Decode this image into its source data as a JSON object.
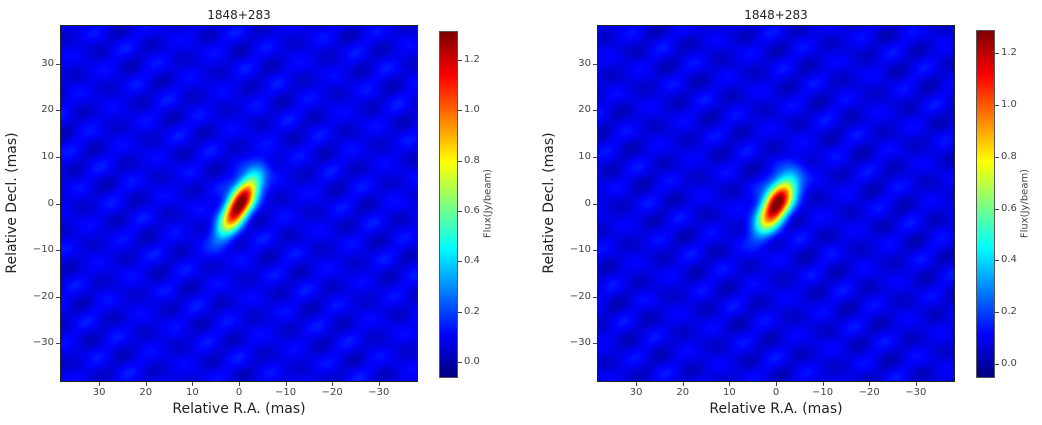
{
  "chart_data": [
    {
      "type": "heatmap",
      "title": "1848+283",
      "xlabel": "Relative R.A. (mas)",
      "ylabel": "Relative Decl. (mas)",
      "xlim": [
        38.4,
        -38.4
      ],
      "ylim": [
        -38.3,
        38.3
      ],
      "xticks": [
        30,
        20,
        10,
        0,
        -10,
        -20,
        -30
      ],
      "xtick_labels": [
        "30",
        "20",
        "10",
        "0",
        "−10",
        "−20",
        "−30"
      ],
      "yticks": [
        30,
        20,
        10,
        0,
        -10,
        -20,
        -30
      ],
      "ytick_labels": [
        "30",
        "20",
        "10",
        "0",
        "−10",
        "−20",
        "−30"
      ],
      "colormap": "jet",
      "colorbar": {
        "label": "Flux(Jy/beam)",
        "clim": [
          -0.064,
          1.315
        ],
        "ticks": [
          0.0,
          0.2,
          0.4,
          0.6,
          0.8,
          1.0,
          1.2
        ],
        "tick_labels": [
          "0.0",
          "0.2",
          "0.4",
          "0.6",
          "0.8",
          "1.0",
          "1.2"
        ]
      },
      "source": {
        "center": [
          0,
          0
        ],
        "peak": 1.31,
        "major_fwhm_mas": 11,
        "minor_fwhm_mas": 4,
        "position_angle_deg": 30,
        "background": 0.08
      }
    },
    {
      "type": "heatmap",
      "title": "1848+283",
      "xlabel": "Relative R.A. (mas)",
      "ylabel": "Relative Decl. (mas)",
      "xlim": [
        38.4,
        -38.4
      ],
      "ylim": [
        -38.3,
        38.3
      ],
      "xticks": [
        30,
        20,
        10,
        0,
        -10,
        -20,
        -30
      ],
      "xtick_labels": [
        "30",
        "20",
        "10",
        "0",
        "−10",
        "−20",
        "−30"
      ],
      "yticks": [
        30,
        20,
        10,
        0,
        -10,
        -20,
        -30
      ],
      "ytick_labels": [
        "30",
        "20",
        "10",
        "0",
        "−10",
        "−20",
        "−30"
      ],
      "colormap": "jet",
      "colorbar": {
        "label": "Flux(Jy/beam)",
        "clim": [
          -0.054,
          1.29
        ],
        "ticks": [
          0.0,
          0.2,
          0.4,
          0.6,
          0.8,
          1.0,
          1.2
        ],
        "tick_labels": [
          "0.0",
          "0.2",
          "0.4",
          "0.6",
          "0.8",
          "1.0",
          "1.2"
        ]
      },
      "source": {
        "center": [
          0,
          0
        ],
        "peak": 1.28,
        "major_fwhm_mas": 10,
        "minor_fwhm_mas": 4.5,
        "position_angle_deg": 30,
        "background": 0.08
      }
    }
  ]
}
